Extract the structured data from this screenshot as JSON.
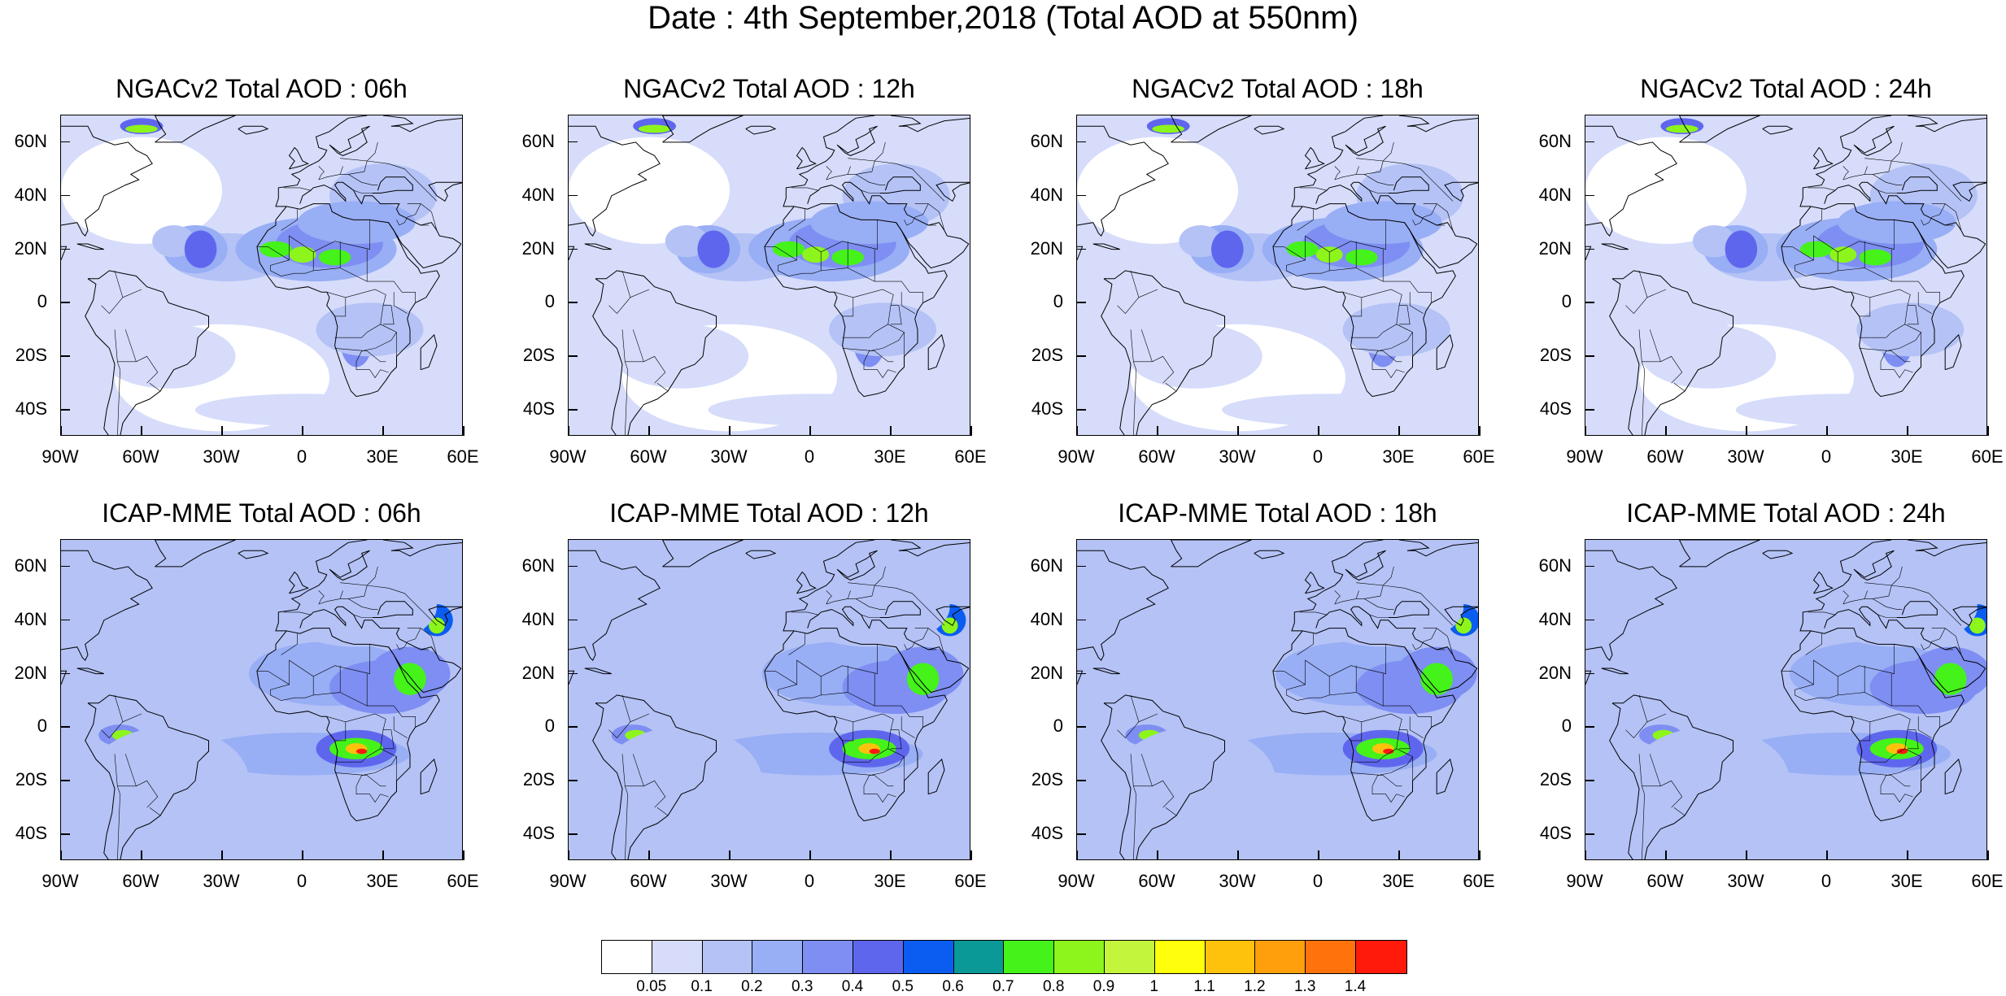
{
  "title": "Date : 4th September,2018 (Total AOD at 550nm)",
  "panels": [
    {
      "title": "NGACv2 Total AOD : 06h",
      "model": "NGACv2",
      "forecast_hour": "06h"
    },
    {
      "title": "NGACv2 Total AOD : 12h",
      "model": "NGACv2",
      "forecast_hour": "12h"
    },
    {
      "title": "NGACv2 Total AOD : 18h",
      "model": "NGACv2",
      "forecast_hour": "18h"
    },
    {
      "title": "NGACv2 Total AOD : 24h",
      "model": "NGACv2",
      "forecast_hour": "24h"
    },
    {
      "title": "ICAP-MME Total AOD : 06h",
      "model": "ICAP-MME",
      "forecast_hour": "06h"
    },
    {
      "title": "ICAP-MME Total AOD : 12h",
      "model": "ICAP-MME",
      "forecast_hour": "12h"
    },
    {
      "title": "ICAP-MME Total AOD : 18h",
      "model": "ICAP-MME",
      "forecast_hour": "18h"
    },
    {
      "title": "ICAP-MME Total AOD : 24h",
      "model": "ICAP-MME",
      "forecast_hour": "24h"
    }
  ],
  "lat_ticks": [
    "60N",
    "40N",
    "20N",
    "0",
    "20S",
    "40S"
  ],
  "lat_values": [
    60,
    40,
    20,
    0,
    -20,
    -40
  ],
  "lon_ticks": [
    "90W",
    "60W",
    "30W",
    "0",
    "30E",
    "60E"
  ],
  "lon_values": [
    -90,
    -60,
    -30,
    0,
    30,
    60
  ],
  "map_extent": {
    "lon_min": -90,
    "lon_max": 60,
    "lat_min": -50,
    "lat_max": 70
  },
  "colorbar": {
    "labels": [
      "0.05",
      "0.1",
      "0.2",
      "0.3",
      "0.4",
      "0.5",
      "0.6",
      "0.7",
      "0.8",
      "0.9",
      "1",
      "1.1",
      "1.2",
      "1.3",
      "1.4"
    ],
    "colors": [
      "#ffffff",
      "#d6dcfa",
      "#b4c2f6",
      "#98aef5",
      "#7e8ef2",
      "#5f66ee",
      "#0a5df0",
      "#0b9998",
      "#45f21a",
      "#8df51c",
      "#c3f53c",
      "#ffff0b",
      "#ffc20c",
      "#ff9f0c",
      "#ff720c",
      "#ff1a0c"
    ]
  }
}
